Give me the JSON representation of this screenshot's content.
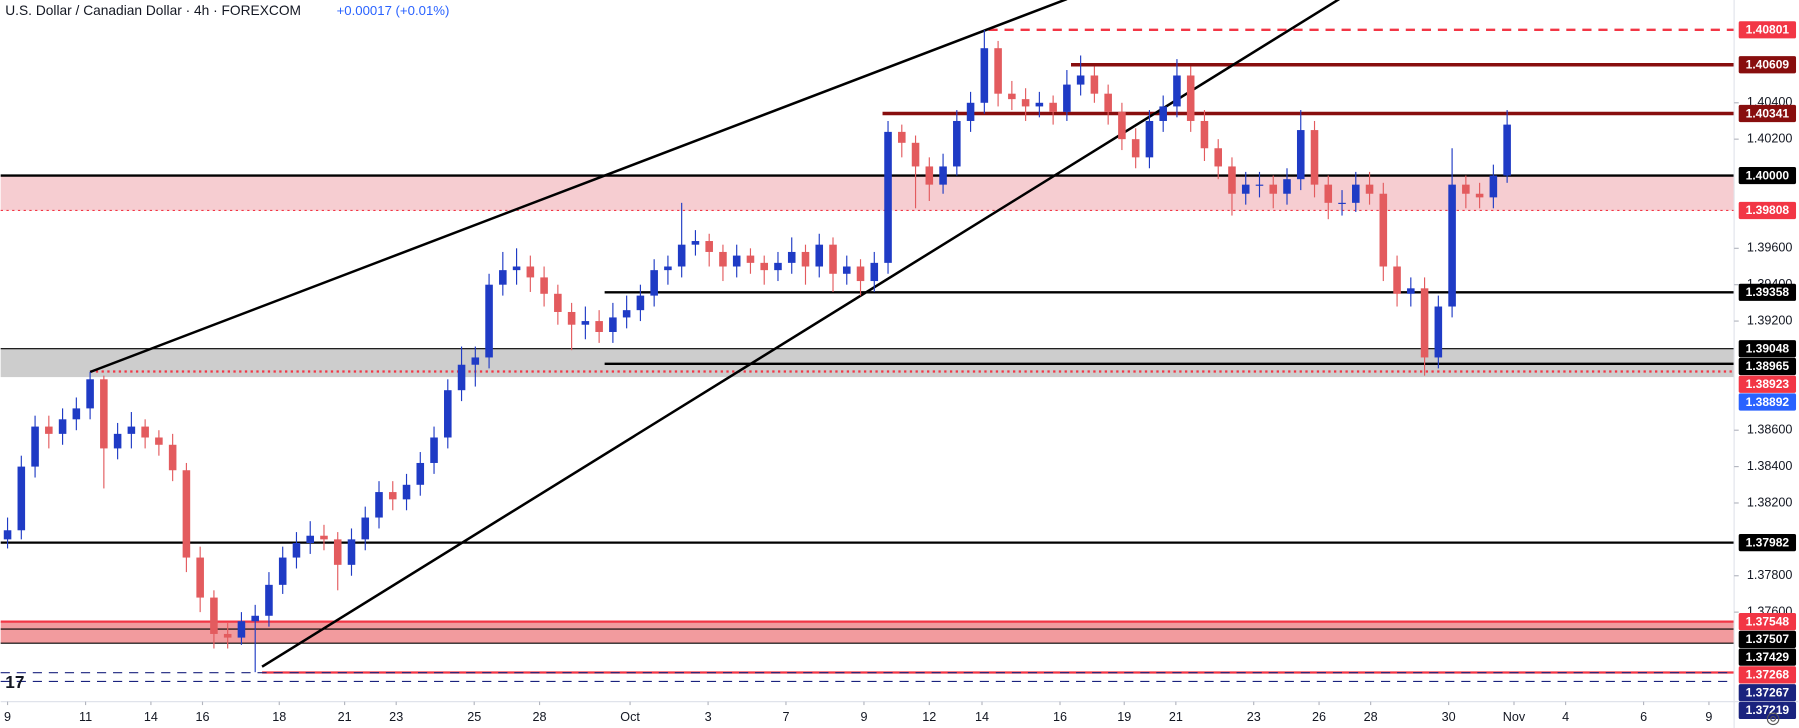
{
  "chart_data": {
    "type": "candlestick",
    "title": "U.S. Dollar / Canadian Dollar · 4h · FOREXCOM",
    "change": "+0.00017 (+0.01%)",
    "up_color": "#1f3bc5",
    "down_color": "#e35b5e",
    "ylim": [
      1.37108,
      1.40965
    ],
    "xlim": [
      -0.5,
      125.5
    ],
    "yticks": [
      {
        "value": 1.404,
        "label": "1.40400"
      },
      {
        "value": 1.402,
        "label": "1.40200"
      },
      {
        "value": 1.396,
        "label": "1.39600"
      },
      {
        "value": 1.394,
        "label": "1.39400"
      },
      {
        "value": 1.392,
        "label": "1.39200"
      },
      {
        "value": 1.386,
        "label": "1.38600"
      },
      {
        "value": 1.384,
        "label": "1.38400"
      },
      {
        "value": 1.382,
        "label": "1.38200"
      },
      {
        "value": 1.378,
        "label": "1.37800"
      },
      {
        "value": 1.376,
        "label": "1.37600"
      }
    ],
    "xticks": [
      {
        "value": 0,
        "label": "9"
      },
      {
        "value": 5.67,
        "label": "11"
      },
      {
        "value": 10.42,
        "label": "14"
      },
      {
        "value": 14.17,
        "label": "16"
      },
      {
        "value": 19.75,
        "label": "18"
      },
      {
        "value": 24.5,
        "label": "21"
      },
      {
        "value": 28.25,
        "label": "23"
      },
      {
        "value": 33.92,
        "label": "25"
      },
      {
        "value": 38.67,
        "label": "28"
      },
      {
        "value": 45.25,
        "label": "Oct"
      },
      {
        "value": 50.92,
        "label": "3"
      },
      {
        "value": 56.58,
        "label": "7"
      },
      {
        "value": 62.25,
        "label": "9"
      },
      {
        "value": 67,
        "label": "12"
      },
      {
        "value": 70.83,
        "label": "14"
      },
      {
        "value": 76.5,
        "label": "16"
      },
      {
        "value": 81.17,
        "label": "19"
      },
      {
        "value": 84.92,
        "label": "21"
      },
      {
        "value": 90.58,
        "label": "23"
      },
      {
        "value": 95.33,
        "label": "26"
      },
      {
        "value": 99.08,
        "label": "28"
      },
      {
        "value": 104.75,
        "label": "30"
      },
      {
        "value": 109.5,
        "label": "Nov"
      },
      {
        "value": 113.25,
        "label": "4"
      },
      {
        "value": 118.92,
        "label": "6"
      },
      {
        "value": 123.67,
        "label": "9"
      }
    ],
    "candles": [
      [
        1.38,
        1.3812,
        1.3795,
        1.3805
      ],
      [
        1.3805,
        1.3846,
        1.38,
        1.384
      ],
      [
        1.384,
        1.3868,
        1.3834,
        1.3862
      ],
      [
        1.3862,
        1.3868,
        1.385,
        1.3858
      ],
      [
        1.3858,
        1.3872,
        1.3852,
        1.3866
      ],
      [
        1.3866,
        1.3878,
        1.386,
        1.3872
      ],
      [
        1.3872,
        1.3892,
        1.3866,
        1.3888
      ],
      [
        1.3888,
        1.389,
        1.3828,
        1.385
      ],
      [
        1.385,
        1.3864,
        1.3844,
        1.3858
      ],
      [
        1.3858,
        1.387,
        1.385,
        1.3862
      ],
      [
        1.3862,
        1.3866,
        1.385,
        1.3856
      ],
      [
        1.3856,
        1.386,
        1.3846,
        1.3852
      ],
      [
        1.3852,
        1.3858,
        1.3832,
        1.3838
      ],
      [
        1.3838,
        1.3842,
        1.3782,
        1.379
      ],
      [
        1.379,
        1.3796,
        1.376,
        1.3768
      ],
      [
        1.3768,
        1.3772,
        1.374,
        1.3748
      ],
      [
        1.3748,
        1.3754,
        1.374,
        1.3746
      ],
      [
        1.3746,
        1.376,
        1.3742,
        1.3755
      ],
      [
        1.3755,
        1.3764,
        1.3727,
        1.3758
      ],
      [
        1.3758,
        1.3782,
        1.3752,
        1.3775
      ],
      [
        1.3775,
        1.3796,
        1.377,
        1.379
      ],
      [
        1.379,
        1.3804,
        1.3784,
        1.3798
      ],
      [
        1.3798,
        1.381,
        1.3792,
        1.3802
      ],
      [
        1.3802,
        1.3808,
        1.3794,
        1.38
      ],
      [
        1.38,
        1.3804,
        1.3772,
        1.3786
      ],
      [
        1.3786,
        1.3806,
        1.378,
        1.38
      ],
      [
        1.38,
        1.3818,
        1.3794,
        1.3812
      ],
      [
        1.3812,
        1.3832,
        1.3806,
        1.3826
      ],
      [
        1.3826,
        1.3832,
        1.3816,
        1.3822
      ],
      [
        1.3822,
        1.3836,
        1.3816,
        1.383
      ],
      [
        1.383,
        1.3848,
        1.3824,
        1.3842
      ],
      [
        1.3842,
        1.3862,
        1.3836,
        1.3856
      ],
      [
        1.3856,
        1.3888,
        1.385,
        1.3882
      ],
      [
        1.3882,
        1.3906,
        1.3876,
        1.3896
      ],
      [
        1.3896,
        1.3906,
        1.3884,
        1.39
      ],
      [
        1.39,
        1.3946,
        1.3894,
        1.394
      ],
      [
        1.394,
        1.3958,
        1.3934,
        1.3948
      ],
      [
        1.3948,
        1.396,
        1.394,
        1.395
      ],
      [
        1.395,
        1.3956,
        1.3936,
        1.3944
      ],
      [
        1.3944,
        1.395,
        1.3928,
        1.3935
      ],
      [
        1.3935,
        1.394,
        1.3918,
        1.3925
      ],
      [
        1.3925,
        1.393,
        1.3904,
        1.3918
      ],
      [
        1.3918,
        1.3928,
        1.391,
        1.392
      ],
      [
        1.392,
        1.3926,
        1.3908,
        1.3914
      ],
      [
        1.3914,
        1.393,
        1.3908,
        1.3922
      ],
      [
        1.3922,
        1.3934,
        1.3916,
        1.3926
      ],
      [
        1.3926,
        1.394,
        1.392,
        1.3934
      ],
      [
        1.3934,
        1.3954,
        1.3928,
        1.3948
      ],
      [
        1.3948,
        1.3956,
        1.394,
        1.395
      ],
      [
        1.395,
        1.3985,
        1.3944,
        1.3962
      ],
      [
        1.3962,
        1.397,
        1.3956,
        1.3964
      ],
      [
        1.3964,
        1.3968,
        1.395,
        1.3958
      ],
      [
        1.3958,
        1.3962,
        1.3942,
        1.395
      ],
      [
        1.395,
        1.3962,
        1.3944,
        1.3956
      ],
      [
        1.3956,
        1.396,
        1.3946,
        1.3952
      ],
      [
        1.3952,
        1.3956,
        1.394,
        1.3948
      ],
      [
        1.3948,
        1.3958,
        1.3942,
        1.3952
      ],
      [
        1.3952,
        1.3966,
        1.3946,
        1.3958
      ],
      [
        1.3958,
        1.3962,
        1.394,
        1.395
      ],
      [
        1.395,
        1.3968,
        1.3944,
        1.3962
      ],
      [
        1.3962,
        1.3966,
        1.3936,
        1.3946
      ],
      [
        1.3946,
        1.3956,
        1.394,
        1.395
      ],
      [
        1.395,
        1.3954,
        1.3934,
        1.3942
      ],
      [
        1.3942,
        1.3958,
        1.3936,
        1.3952
      ],
      [
        1.3952,
        1.403,
        1.3946,
        1.4024
      ],
      [
        1.4024,
        1.4028,
        1.401,
        1.4018
      ],
      [
        1.4018,
        1.4022,
        1.3982,
        1.4005
      ],
      [
        1.4005,
        1.401,
        1.3986,
        1.3995
      ],
      [
        1.3995,
        1.4012,
        1.399,
        1.4005
      ],
      [
        1.4005,
        1.4036,
        1.4,
        1.403
      ],
      [
        1.403,
        1.4046,
        1.4024,
        1.404
      ],
      [
        1.404,
        1.408,
        1.4034,
        1.407
      ],
      [
        1.407,
        1.4074,
        1.4038,
        1.4045
      ],
      [
        1.4045,
        1.4052,
        1.4036,
        1.4042
      ],
      [
        1.4042,
        1.4048,
        1.403,
        1.4038
      ],
      [
        1.4038,
        1.4046,
        1.4032,
        1.404
      ],
      [
        1.404,
        1.4044,
        1.4028,
        1.4035
      ],
      [
        1.4035,
        1.4058,
        1.403,
        1.405
      ],
      [
        1.405,
        1.4066,
        1.4044,
        1.4055
      ],
      [
        1.4055,
        1.406,
        1.404,
        1.4045
      ],
      [
        1.4045,
        1.405,
        1.4028,
        1.4035
      ],
      [
        1.4035,
        1.404,
        1.4014,
        1.402
      ],
      [
        1.402,
        1.4026,
        1.4004,
        1.401
      ],
      [
        1.401,
        1.4036,
        1.4004,
        1.403
      ],
      [
        1.403,
        1.4044,
        1.4024,
        1.4038
      ],
      [
        1.4038,
        1.4064,
        1.4032,
        1.4055
      ],
      [
        1.4055,
        1.406,
        1.4024,
        1.403
      ],
      [
        1.403,
        1.4036,
        1.4008,
        1.4015
      ],
      [
        1.4015,
        1.402,
        1.3998,
        1.4005
      ],
      [
        1.4005,
        1.401,
        1.3978,
        1.399
      ],
      [
        1.399,
        1.4002,
        1.3984,
        1.3995
      ],
      [
        1.3995,
        1.4002,
        1.3988,
        1.3995
      ],
      [
        1.3995,
        1.4,
        1.3982,
        1.399
      ],
      [
        1.399,
        1.4004,
        1.3984,
        1.3998
      ],
      [
        1.3998,
        1.4036,
        1.3992,
        1.4025
      ],
      [
        1.4025,
        1.403,
        1.3988,
        1.3995
      ],
      [
        1.3995,
        1.4,
        1.3976,
        1.3985
      ],
      [
        1.3985,
        1.3992,
        1.3978,
        1.3985
      ],
      [
        1.3985,
        1.4002,
        1.398,
        1.3995
      ],
      [
        1.3995,
        1.4002,
        1.3984,
        1.399
      ],
      [
        1.399,
        1.3996,
        1.3942,
        1.395
      ],
      [
        1.395,
        1.3956,
        1.3928,
        1.3935
      ],
      [
        1.3935,
        1.3944,
        1.3928,
        1.3938
      ],
      [
        1.3938,
        1.3944,
        1.389,
        1.39
      ],
      [
        1.39,
        1.3934,
        1.3894,
        1.3928
      ],
      [
        1.3928,
        1.4015,
        1.3922,
        1.3995
      ],
      [
        1.3995,
        1.4,
        1.3982,
        1.399
      ],
      [
        1.399,
        1.3996,
        1.3982,
        1.3988
      ],
      [
        1.3988,
        1.4006,
        1.3982,
        1.4
      ],
      [
        1.4,
        1.4036,
        1.3996,
        1.4028
      ]
    ],
    "levels": [
      {
        "value": 1.40801,
        "color": "#f23645",
        "style": "dashed",
        "width": 2,
        "start": 71.3
      },
      {
        "value": 1.40609,
        "color": "#880e0e",
        "style": "solid",
        "width": 3,
        "start": 77.3
      },
      {
        "value": 1.40341,
        "color": "#880e0e",
        "style": "solid",
        "width": 3,
        "start": 63.6
      },
      {
        "value": 1.4,
        "label": "1.40000",
        "color": "#000000",
        "style": "solid",
        "width": 2
      },
      {
        "value": 1.39808,
        "color": "#f23645",
        "style": "dotted",
        "width": 1
      },
      {
        "value": 1.39358,
        "color": "#000000",
        "style": "solid",
        "width": 2,
        "start": 43.4
      },
      {
        "value": 1.39048,
        "color": "#000000",
        "style": "solid",
        "width": 1
      },
      {
        "value": 1.38965,
        "color": "#000000",
        "style": "solid",
        "width": 2,
        "start": 43.4
      },
      {
        "value": 1.38923,
        "color": "#f23645",
        "style": "dotted",
        "width": 2,
        "start": 6
      },
      {
        "value": 1.38892,
        "color": "#2962ff",
        "style": "none",
        "width": 1
      },
      {
        "value": 1.37982,
        "color": "#000000",
        "style": "solid",
        "width": 2
      },
      {
        "value": 1.37548,
        "color": "#f23645",
        "style": "solid",
        "width": 2
      },
      {
        "value": 1.37507,
        "color": "#000000",
        "style": "solid",
        "width": 1
      },
      {
        "value": 1.37429,
        "color": "#000000",
        "style": "solid",
        "width": 1
      },
      {
        "value": 1.37268,
        "color": "#f23645",
        "style": "solid",
        "width": 2,
        "start": 18.5
      },
      {
        "value": 1.37267,
        "color": "#1a237e",
        "style": "dashed",
        "width": 1
      },
      {
        "value": 1.37219,
        "color": "#1a237e",
        "style": "dashed",
        "width": 1
      }
    ],
    "zones": [
      {
        "levels": [
          3,
          4
        ],
        "color": "#f4c4c9"
      },
      {
        "levels": [
          6,
          9
        ],
        "color": "#c4c4c4"
      },
      {
        "levels": [
          11,
          13
        ],
        "color": "#f08a8d"
      }
    ],
    "trendlines": [
      {
        "x": [
          6,
          77
        ],
        "y": [
          1.3892,
          1.4097
        ]
      },
      {
        "x": [
          18.5,
          96.8
        ],
        "y": [
          1.373,
          1.4097
        ]
      }
    ]
  }
}
